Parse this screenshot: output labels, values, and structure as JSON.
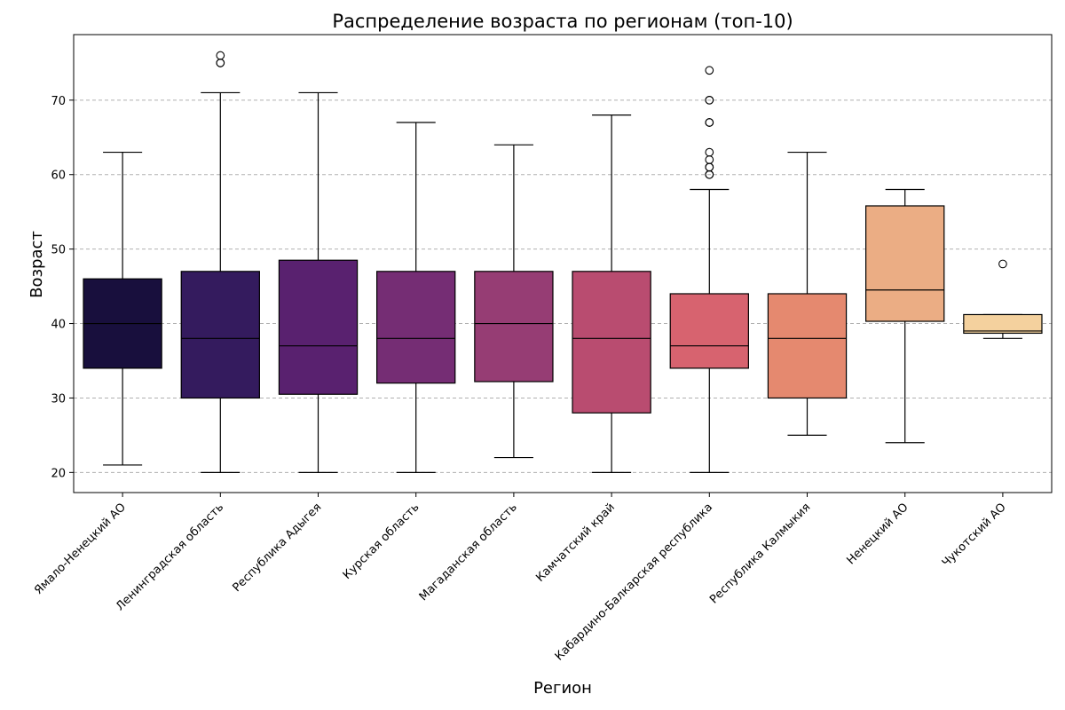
{
  "chart_data": {
    "type": "box",
    "title": "Распределение возраста по регионам (топ-10)",
    "xlabel": "Регион",
    "ylabel": "Возраст",
    "ylim": [
      17.3,
      78.8
    ],
    "yticks": [
      20,
      30,
      40,
      50,
      60,
      70
    ],
    "grid": "y-dashed",
    "categories": [
      "Ямало-Ненецкий АО",
      "Ленинградская область",
      "Республика Адыгея",
      "Курская область",
      "Магаданская область",
      "Камчатский край",
      "Кабардино-Балкарская республика",
      "Республика Калмыкия",
      "Ненецкий АО",
      "Чукотский АО"
    ],
    "boxes": [
      {
        "whisker_low": 21,
        "q1": 34,
        "median": 40,
        "q3": 46,
        "whisker_high": 63,
        "outliers": [],
        "color": "#180f3d"
      },
      {
        "whisker_low": 20,
        "q1": 30,
        "median": 38,
        "q3": 47,
        "whisker_high": 71,
        "outliers": [
          75,
          75,
          76
        ],
        "color": "#341b5e"
      },
      {
        "whisker_low": 20,
        "q1": 30.5,
        "median": 37,
        "q3": 48.5,
        "whisker_high": 71,
        "outliers": [],
        "color": "#59216f"
      },
      {
        "whisker_low": 20,
        "q1": 32,
        "median": 38,
        "q3": 47,
        "whisker_high": 67,
        "outliers": [],
        "color": "#752d74"
      },
      {
        "whisker_low": 22,
        "q1": 32.2,
        "median": 40,
        "q3": 47,
        "whisker_high": 64,
        "outliers": [],
        "color": "#963d74"
      },
      {
        "whisker_low": 20,
        "q1": 28,
        "median": 38,
        "q3": 47,
        "whisker_high": 68,
        "outliers": [],
        "color": "#b94c70"
      },
      {
        "whisker_low": 20,
        "q1": 34,
        "median": 37,
        "q3": 44,
        "whisker_high": 58,
        "outliers": [
          60,
          60,
          61,
          61,
          62,
          63,
          67,
          67,
          70,
          70,
          74
        ],
        "color": "#d7636f"
      },
      {
        "whisker_low": 25,
        "q1": 30,
        "median": 38,
        "q3": 44,
        "whisker_high": 63,
        "outliers": [],
        "color": "#e5896f"
      },
      {
        "whisker_low": 24,
        "q1": 40.3,
        "median": 44.5,
        "q3": 55.8,
        "whisker_high": 58,
        "outliers": [],
        "color": "#ebad84"
      },
      {
        "whisker_low": 38,
        "q1": 38.7,
        "median": 39,
        "q3": 41.2,
        "whisker_high": 41.2,
        "outliers": [
          48
        ],
        "color": "#f4d19e"
      }
    ]
  }
}
